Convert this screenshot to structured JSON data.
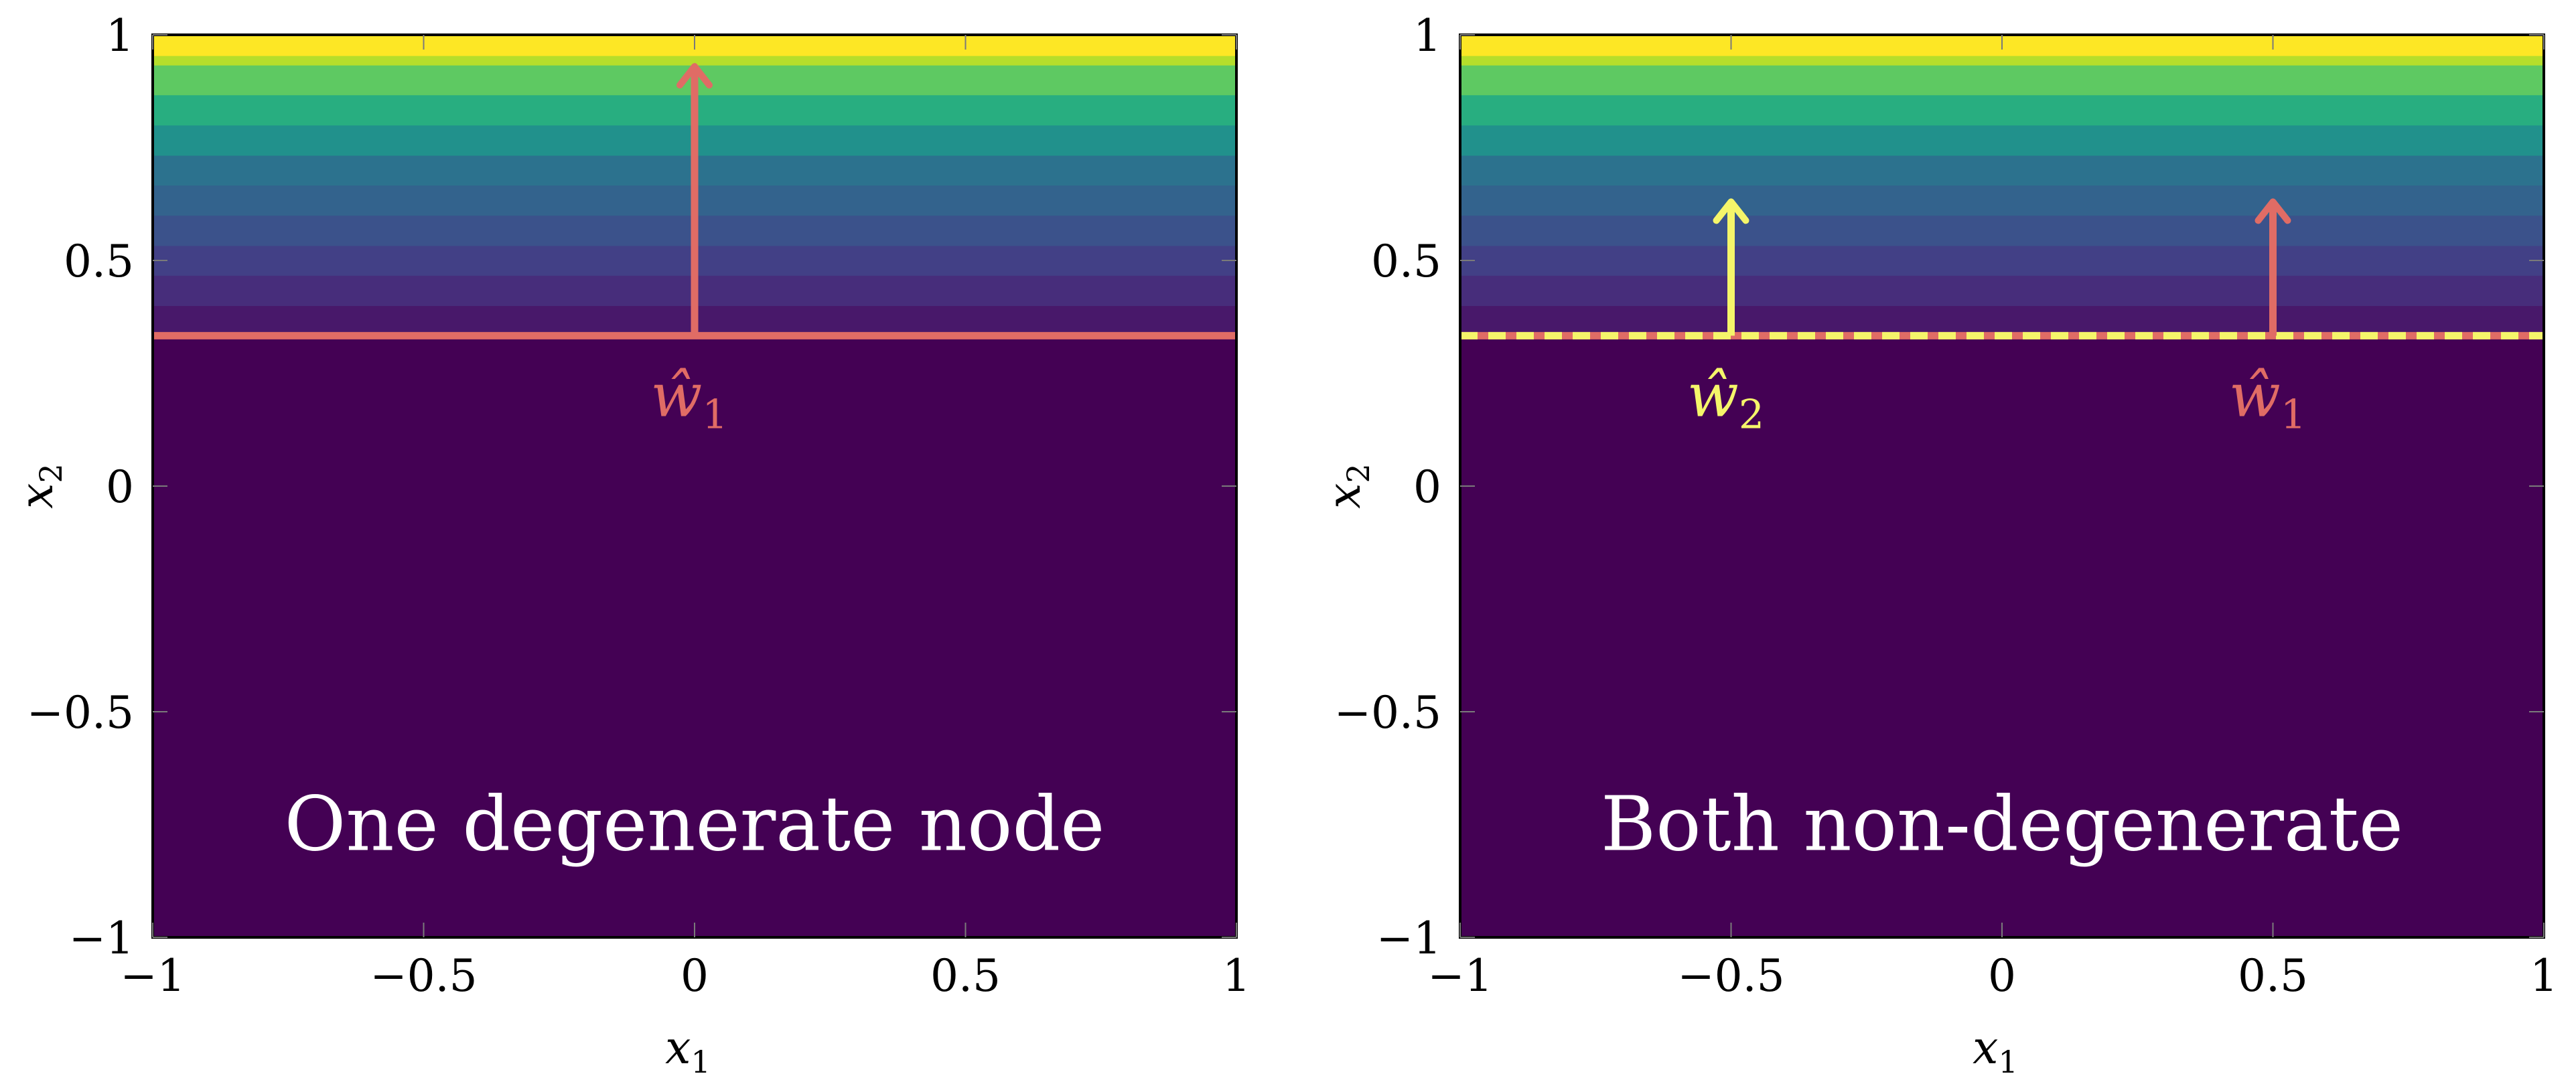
{
  "chart_data": [
    {
      "type": "heatmap",
      "xlabel": "x",
      "xlabel_sub": "1",
      "ylabel": "x",
      "ylabel_sub": "2",
      "xlim": [
        -1,
        1
      ],
      "ylim": [
        -1,
        1
      ],
      "x_ticks": [
        -1,
        -0.5,
        0,
        0.5,
        1
      ],
      "x_tick_labels": [
        "−1",
        "−0.5",
        "0",
        "0.5",
        "1"
      ],
      "y_ticks": [
        -1,
        -0.5,
        0,
        0.5,
        1
      ],
      "y_tick_labels": [
        "−1",
        "−0.5",
        "0",
        "0.5",
        "1"
      ],
      "colormap": "viridis",
      "contour_bands": [
        {
          "y0": 0.3333,
          "y1": 0.4,
          "color": "#48186a"
        },
        {
          "y0": 0.4,
          "y1": 0.467,
          "color": "#472d7b"
        },
        {
          "y0": 0.467,
          "y1": 0.533,
          "color": "#424086"
        },
        {
          "y0": 0.533,
          "y1": 0.6,
          "color": "#3b528b"
        },
        {
          "y0": 0.6,
          "y1": 0.667,
          "color": "#33638d"
        },
        {
          "y0": 0.667,
          "y1": 0.733,
          "color": "#2c728e"
        },
        {
          "y0": 0.733,
          "y1": 0.8,
          "color": "#21918c"
        },
        {
          "y0": 0.8,
          "y1": 0.867,
          "color": "#28ae80"
        },
        {
          "y0": 0.867,
          "y1": 0.933,
          "color": "#5ec962"
        },
        {
          "y0": 0.933,
          "y1": 1.0,
          "color": "#b5de2b"
        }
      ],
      "top_band_color": "#fde725",
      "background_color": "#440154",
      "decision_lines": [
        {
          "y": 0.3333,
          "color": "#e06c65",
          "style": "solid"
        }
      ],
      "arrows": [
        {
          "x": 0,
          "y_start": 0.3333,
          "y_end": 0.93,
          "color": "#e06c65",
          "label": "ŵ",
          "label_sub": "1"
        }
      ],
      "annotation": "One degenerate node"
    },
    {
      "type": "heatmap",
      "xlabel": "x",
      "xlabel_sub": "1",
      "ylabel": "x",
      "ylabel_sub": "2",
      "xlim": [
        -1,
        1
      ],
      "ylim": [
        -1,
        1
      ],
      "x_ticks": [
        -1,
        -0.5,
        0,
        0.5,
        1
      ],
      "x_tick_labels": [
        "−1",
        "−0.5",
        "0",
        "0.5",
        "1"
      ],
      "y_ticks": [
        -1,
        -0.5,
        0,
        0.5,
        1
      ],
      "y_tick_labels": [
        "−1",
        "−0.5",
        "0",
        "0.5",
        "1"
      ],
      "colormap": "viridis",
      "contour_bands": [
        {
          "y0": 0.3333,
          "y1": 0.4,
          "color": "#48186a"
        },
        {
          "y0": 0.4,
          "y1": 0.467,
          "color": "#472d7b"
        },
        {
          "y0": 0.467,
          "y1": 0.533,
          "color": "#424086"
        },
        {
          "y0": 0.533,
          "y1": 0.6,
          "color": "#3b528b"
        },
        {
          "y0": 0.6,
          "y1": 0.667,
          "color": "#33638d"
        },
        {
          "y0": 0.667,
          "y1": 0.733,
          "color": "#2c728e"
        },
        {
          "y0": 0.733,
          "y1": 0.8,
          "color": "#21918c"
        },
        {
          "y0": 0.8,
          "y1": 0.867,
          "color": "#28ae80"
        },
        {
          "y0": 0.867,
          "y1": 0.933,
          "color": "#5ec962"
        },
        {
          "y0": 0.933,
          "y1": 1.0,
          "color": "#b5de2b"
        }
      ],
      "top_band_color": "#fde725",
      "background_color": "#440154",
      "decision_lines": [
        {
          "y": 0.3333,
          "color": "#e06c65",
          "style": "solid"
        },
        {
          "y": 0.3333,
          "color": "#f5f56a",
          "style": "dashed"
        }
      ],
      "arrows": [
        {
          "x": -0.5,
          "y_start": 0.3333,
          "y_end": 0.63,
          "color": "#f5f56a",
          "label": "ŵ",
          "label_sub": "2"
        },
        {
          "x": 0.5,
          "y_start": 0.3333,
          "y_end": 0.63,
          "color": "#e06c65",
          "label": "ŵ",
          "label_sub": "1"
        }
      ],
      "annotation": "Both non-degenerate"
    }
  ]
}
